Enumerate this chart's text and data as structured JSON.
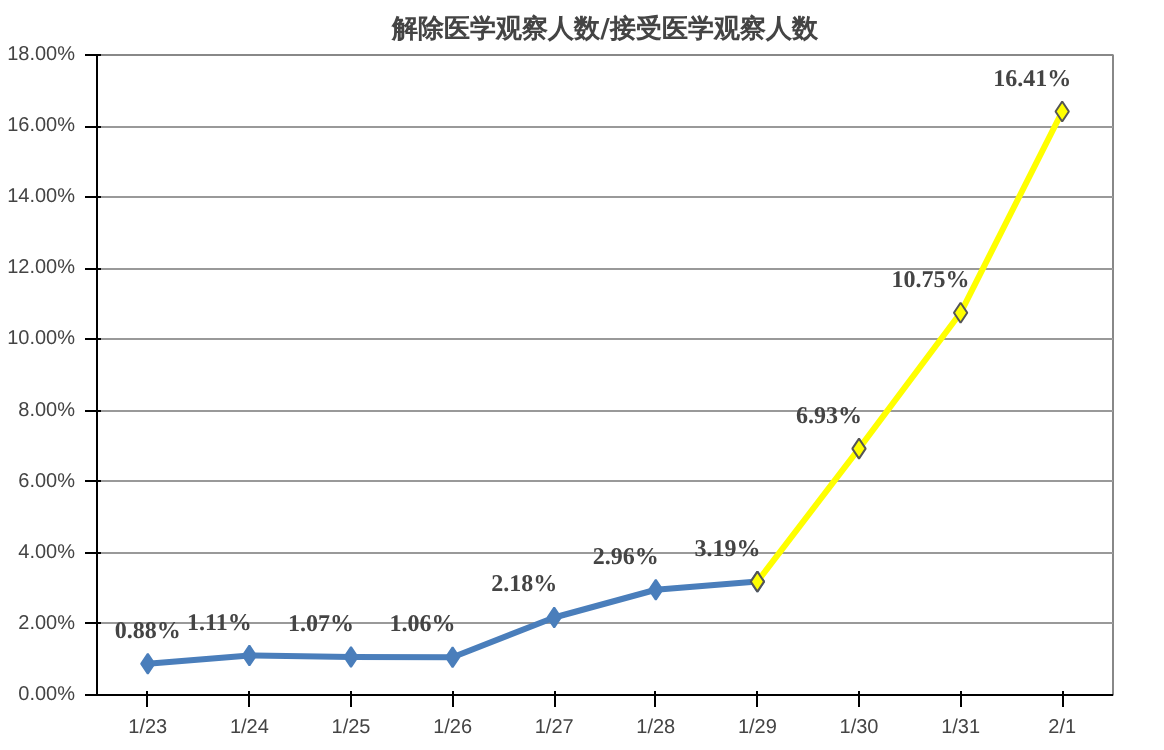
{
  "chart_data": {
    "type": "line",
    "title": "解除医学观察人数/接受医学观察人数",
    "categories": [
      "1/23",
      "1/24",
      "1/25",
      "1/26",
      "1/27",
      "1/28",
      "1/29",
      "1/30",
      "1/31",
      "2/1"
    ],
    "series": [
      {
        "color": "#4a7ebb",
        "values": [
          0.88,
          1.11,
          1.07,
          1.06,
          2.18,
          2.96,
          3.19,
          null,
          null,
          null
        ],
        "value_labels": [
          "0.88%",
          "1.11%",
          "1.07%",
          "1.06%",
          "2.18%",
          "2.96%",
          "3.19%",
          null,
          null,
          null
        ]
      },
      {
        "color": "#ffff00",
        "values": [
          null,
          null,
          null,
          null,
          null,
          null,
          3.19,
          6.93,
          10.75,
          16.41
        ],
        "value_labels": [
          null,
          null,
          null,
          null,
          null,
          null,
          null,
          "6.93%",
          "10.75%",
          "16.41%"
        ]
      }
    ],
    "ylim": [
      0,
      18
    ],
    "yticks": [
      {
        "value": 0,
        "label": "0.00%"
      },
      {
        "value": 2,
        "label": "2.00%"
      },
      {
        "value": 4,
        "label": "4.00%"
      },
      {
        "value": 6,
        "label": "6.00%"
      },
      {
        "value": 8,
        "label": "8.00%"
      },
      {
        "value": 10,
        "label": "10.00%"
      },
      {
        "value": 12,
        "label": "12.00%"
      },
      {
        "value": 14,
        "label": "14.00%"
      },
      {
        "value": 16,
        "label": "16.00%"
      },
      {
        "value": 18,
        "label": "18.00%"
      }
    ],
    "grid": "y",
    "marker": "diamond",
    "line_style": "solid"
  }
}
